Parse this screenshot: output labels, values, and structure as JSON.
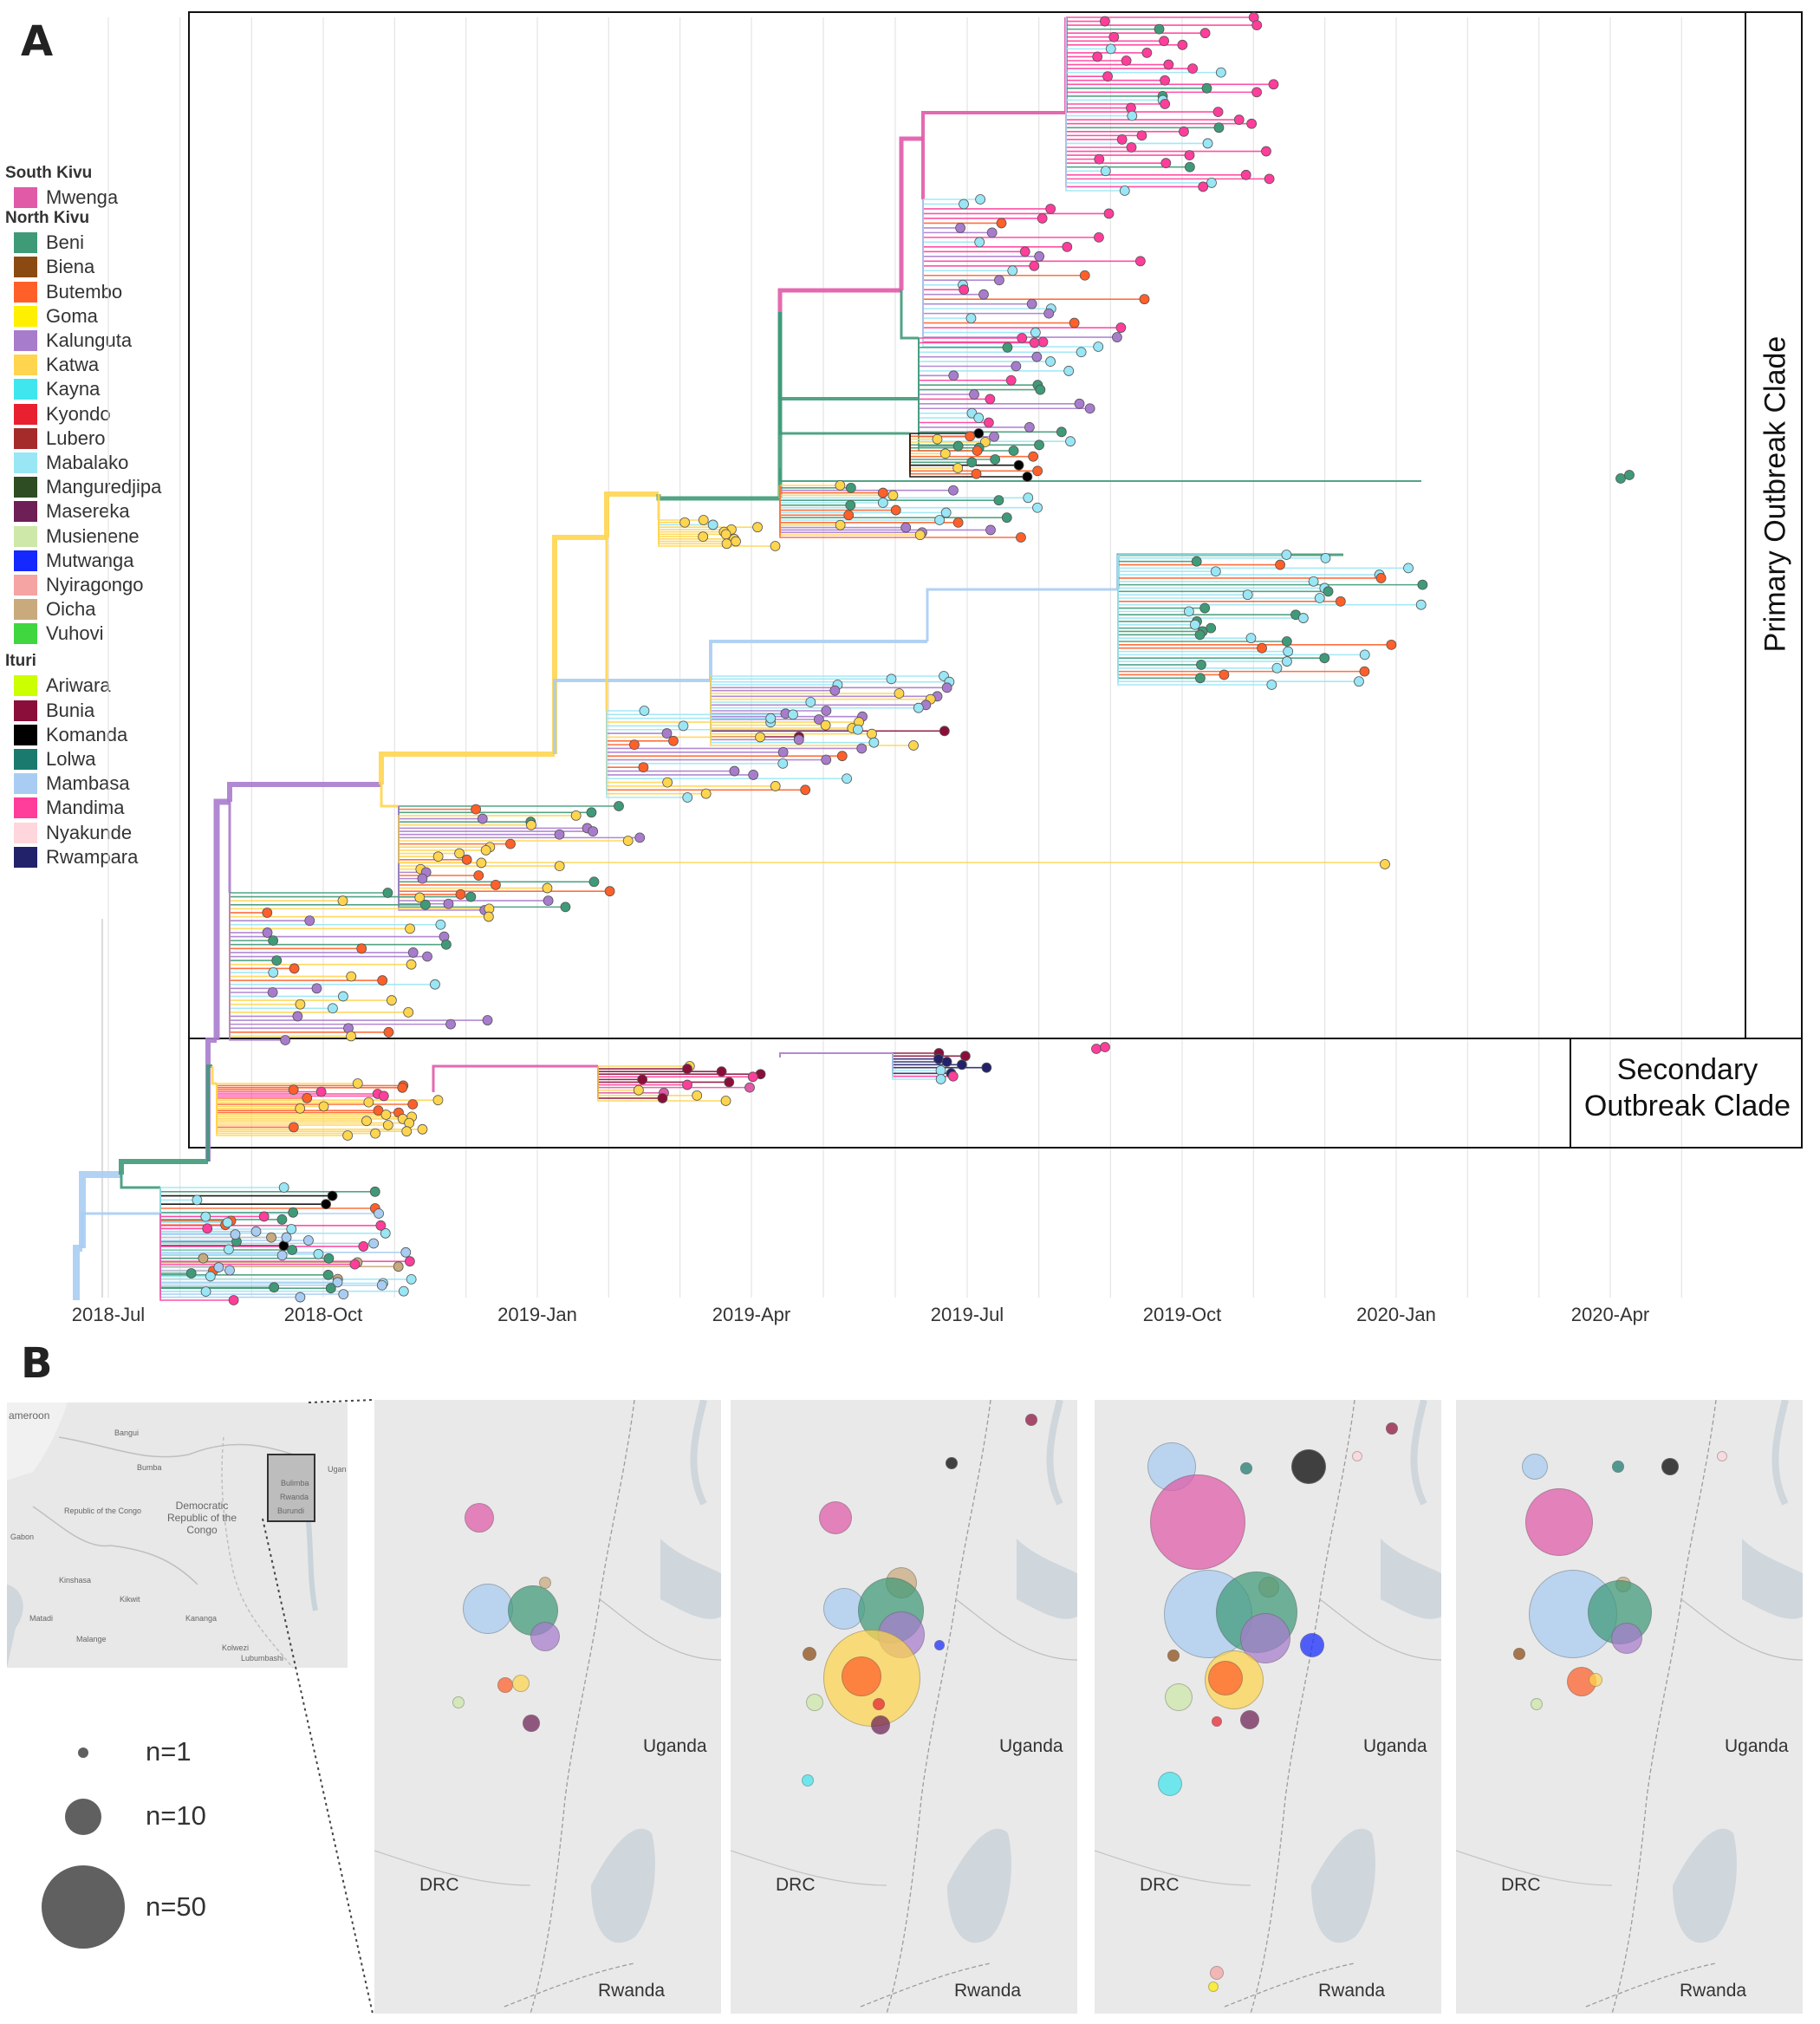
{
  "panel_a_letter": "A",
  "panel_b_letter": "B",
  "legend": [
    {
      "group": "South Kivu",
      "items": [
        {
          "label": "Mwenga",
          "color": "#e05aa8"
        }
      ]
    },
    {
      "group": "North Kivu",
      "items": [
        {
          "label": "Beni",
          "color": "#3f9a78"
        },
        {
          "label": "Biena",
          "color": "#8b4a12"
        },
        {
          "label": "Butembo",
          "color": "#ff6029"
        },
        {
          "label": "Goma",
          "color": "#ffef00"
        },
        {
          "label": "Kalunguta",
          "color": "#a87ccd"
        },
        {
          "label": "Katwa",
          "color": "#ffd54f"
        },
        {
          "label": "Kayna",
          "color": "#3fe6ee"
        },
        {
          "label": "Kyondo",
          "color": "#e8202f"
        },
        {
          "label": "Lubero",
          "color": "#a52a2a"
        },
        {
          "label": "Mabalako",
          "color": "#99e6f5"
        },
        {
          "label": "Manguredjipa",
          "color": "#2e4d22"
        },
        {
          "label": "Masereka",
          "color": "#6e1f55"
        },
        {
          "label": "Musienene",
          "color": "#cde8a8"
        },
        {
          "label": "Mutwanga",
          "color": "#1428ff"
        },
        {
          "label": "Nyiragongo",
          "color": "#f5a3a3"
        },
        {
          "label": "Oicha",
          "color": "#c8aa7d"
        },
        {
          "label": "Vuhovi",
          "color": "#3fd63f"
        }
      ]
    },
    {
      "group": "Ituri",
      "items": [
        {
          "label": "Ariwara",
          "color": "#ccff00"
        },
        {
          "label": "Bunia",
          "color": "#8b0e3a"
        },
        {
          "label": "Komanda",
          "color": "#000000"
        },
        {
          "label": "Lolwa",
          "color": "#1a7a6e"
        },
        {
          "label": "Mambasa",
          "color": "#a9cdf2"
        },
        {
          "label": "Mandima",
          "color": "#ff3d9a"
        },
        {
          "label": "Nyakunde",
          "color": "#ffd6dc"
        },
        {
          "label": "Rwampara",
          "color": "#22226b"
        }
      ]
    }
  ],
  "clades": {
    "primary": "Primary Outbreak Clade",
    "secondary_line1": "Secondary",
    "secondary_line2": "Outbreak Clade"
  },
  "time_axis": {
    "ticks": [
      "2018-Jul",
      "2018-Oct",
      "2019-Jan",
      "2019-Apr",
      "2019-Jul",
      "2019-Oct",
      "2020-Jan",
      "2020-Apr"
    ]
  },
  "minimap": {
    "labels": [
      "ameroon",
      "Bangui",
      "Bumba",
      "Republic of the Congo",
      "Democratic Republic of the Congo",
      "Gabon",
      "Kinshasa",
      "Kikwit",
      "Matadi",
      "Kananga",
      "Kolwezi",
      "Malange",
      "Lubumbashi",
      "Ugan",
      "Burundi",
      "Rwanda",
      "Bulimba"
    ]
  },
  "size_legend": [
    {
      "label": "n=1"
    },
    {
      "label": "n=10"
    },
    {
      "label": "n=50"
    }
  ],
  "map_panels": [
    {
      "labels": {
        "uganda": "Uganda",
        "drc": "DRC",
        "rwanda": "Rwanda"
      }
    },
    {
      "labels": {
        "uganda": "Uganda",
        "drc": "DRC",
        "rwanda": "Rwanda"
      }
    },
    {
      "labels": {
        "uganda": "Uganda",
        "drc": "DRC",
        "rwanda": "Rwanda"
      }
    },
    {
      "labels": {
        "uganda": "Uganda",
        "drc": "DRC",
        "rwanda": "Rwanda"
      }
    }
  ]
}
